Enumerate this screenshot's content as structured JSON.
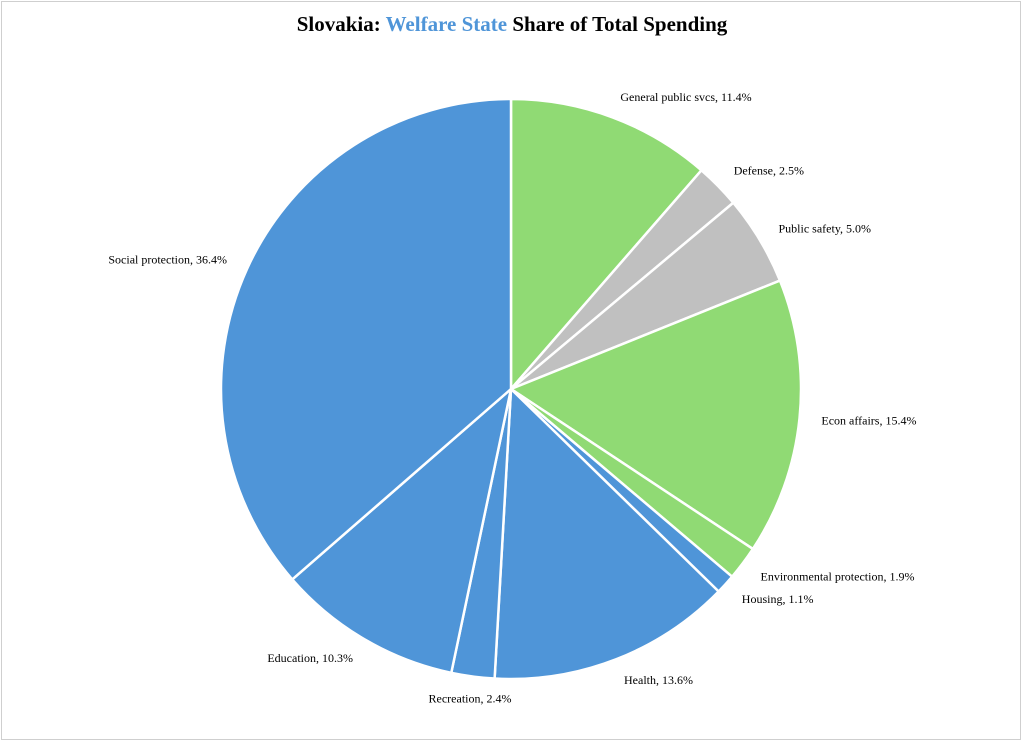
{
  "chart_data": {
    "type": "pie",
    "title": {
      "prefix": "Slovakia: ",
      "highlight": "Welfare State",
      "suffix": " Share of Total Spending"
    },
    "colors": {
      "welfare": "#4f95d8",
      "green": "#90da74",
      "gray": "#c0c0c0",
      "highlight": "#4f95d8",
      "edge": "#ffffff"
    },
    "slices": [
      {
        "name": "General public svcs",
        "value": 11.4,
        "group": "green",
        "label": "General public svcs, 11.4%"
      },
      {
        "name": "Defense",
        "value": 2.5,
        "group": "gray",
        "label": "Defense, 2.5%"
      },
      {
        "name": "Public safety",
        "value": 5.0,
        "group": "gray",
        "label": "Public safety, 5.0%"
      },
      {
        "name": "Econ affairs",
        "value": 15.4,
        "group": "green",
        "label": "Econ affairs, 15.4%"
      },
      {
        "name": "Environmental protection",
        "value": 1.9,
        "group": "green",
        "label": "Environmental protection, 1.9%"
      },
      {
        "name": "Housing",
        "value": 1.1,
        "group": "welfare",
        "label": "Housing, 1.1%"
      },
      {
        "name": "Health",
        "value": 13.6,
        "group": "welfare",
        "label": "Health, 13.6%"
      },
      {
        "name": "Recreation",
        "value": 2.4,
        "group": "welfare",
        "label": "Recreation, 2.4%"
      },
      {
        "name": "Education",
        "value": 10.3,
        "group": "welfare",
        "label": "Education, 10.3%"
      },
      {
        "name": "Social protection",
        "value": 36.4,
        "group": "welfare",
        "label": "Social protection, 36.4%"
      }
    ]
  }
}
